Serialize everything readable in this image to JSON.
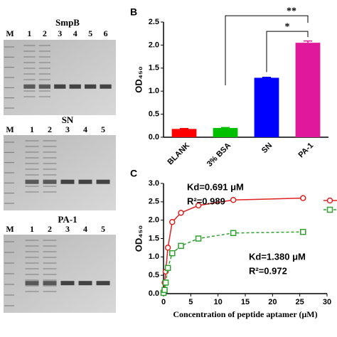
{
  "gels": [
    {
      "title": "SmpB",
      "lanes": [
        "M",
        "1",
        "2",
        "3",
        "4",
        "5",
        "6"
      ]
    },
    {
      "title": "SN",
      "lanes": [
        "M",
        "1",
        "2",
        "3",
        "4",
        "5"
      ]
    },
    {
      "title": "PA-1",
      "lanes": [
        "M",
        "1",
        "2",
        "3",
        "4",
        "5"
      ]
    }
  ],
  "chart_data": [
    {
      "type": "bar",
      "panel": "B",
      "ylabel": "OD₄₅₀",
      "categories": [
        "BLANK",
        "3% BSA",
        "SN",
        "PA-1"
      ],
      "values": [
        0.18,
        0.2,
        1.29,
        2.05
      ],
      "errors": [
        0.01,
        0.01,
        0.01,
        0.04
      ],
      "colors": [
        "#ff0000",
        "#00c000",
        "#0000ff",
        "#e0189a"
      ],
      "ylim": [
        0,
        2.5
      ],
      "yticks": [
        {
          "value": 0,
          "label": "0.0"
        },
        0.5,
        {
          "value": 1,
          "label": "1.0"
        },
        1.5,
        {
          "value": 2,
          "label": "2.0"
        },
        2.5
      ],
      "annotations": [
        "**",
        "*"
      ]
    },
    {
      "type": "scatter",
      "panel": "C",
      "ylabel": "OD₄₅₀",
      "xlabel": "Concentration of peptide aptamer (μM)",
      "series": [
        {
          "color": "#e02020",
          "marker": "circle",
          "dash": false,
          "x": [
            0,
            0.2,
            0.4,
            0.8,
            1.6,
            3.2,
            6.4,
            12.8,
            25.6
          ],
          "values": [
            0.05,
            0.3,
            0.6,
            1.25,
            1.95,
            2.2,
            2.4,
            2.55,
            2.6
          ]
        },
        {
          "color": "#30a030",
          "marker": "square",
          "dash": true,
          "x": [
            0,
            0.2,
            0.4,
            0.8,
            1.6,
            3.2,
            6.4,
            12.8,
            25.6
          ],
          "values": [
            0.02,
            0.1,
            0.3,
            0.7,
            1.1,
            1.3,
            1.5,
            1.65,
            1.68
          ]
        }
      ],
      "xlim": [
        0,
        30
      ],
      "xticks": [
        0,
        5,
        10,
        15,
        20,
        25,
        30
      ],
      "ylim": [
        0,
        3
      ],
      "yticks": [
        {
          "value": 0,
          "label": "0.0"
        },
        0.5,
        {
          "value": 1,
          "label": "1.0"
        },
        1.5,
        {
          "value": 2,
          "label": "2.0"
        },
        2.5,
        {
          "value": 3,
          "label": "3.0"
        }
      ],
      "annotations": [
        "Kd=0.691 μM",
        "R²=0.989",
        "Kd=1.380 μM",
        "R²=0.972"
      ]
    }
  ]
}
